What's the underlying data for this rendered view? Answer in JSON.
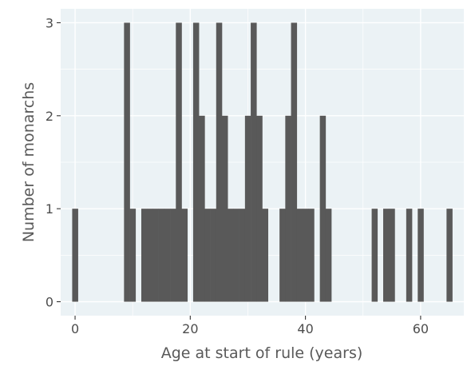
{
  "chart_data": {
    "type": "bar",
    "xlabel": "Age at start of rule (years)",
    "ylabel": "Number of monarchs",
    "xlim": [
      -2.5,
      67.5
    ],
    "ylim": [
      -0.15,
      3.15
    ],
    "x_ticks": [
      0,
      20,
      40,
      60
    ],
    "y_ticks": [
      0,
      1,
      2,
      3
    ],
    "x_tick_labels": [
      "0",
      "20",
      "40",
      "60"
    ],
    "y_tick_labels": [
      "0",
      "1",
      "2",
      "3"
    ],
    "bin_width": 1,
    "grid": true,
    "colors": {
      "bar": "#595959",
      "panel": "#ebf2f5",
      "grid": "#ffffff"
    },
    "bins": [
      {
        "x": 0,
        "count": 1
      },
      {
        "x": 9,
        "count": 3
      },
      {
        "x": 10,
        "count": 1
      },
      {
        "x": 12,
        "count": 1
      },
      {
        "x": 13,
        "count": 1
      },
      {
        "x": 14,
        "count": 1
      },
      {
        "x": 15,
        "count": 1
      },
      {
        "x": 16,
        "count": 1
      },
      {
        "x": 17,
        "count": 1
      },
      {
        "x": 18,
        "count": 3
      },
      {
        "x": 19,
        "count": 1
      },
      {
        "x": 21,
        "count": 3
      },
      {
        "x": 22,
        "count": 2
      },
      {
        "x": 23,
        "count": 1
      },
      {
        "x": 24,
        "count": 1
      },
      {
        "x": 25,
        "count": 3
      },
      {
        "x": 26,
        "count": 2
      },
      {
        "x": 27,
        "count": 1
      },
      {
        "x": 28,
        "count": 1
      },
      {
        "x": 29,
        "count": 1
      },
      {
        "x": 30,
        "count": 2
      },
      {
        "x": 31,
        "count": 3
      },
      {
        "x": 32,
        "count": 2
      },
      {
        "x": 33,
        "count": 1
      },
      {
        "x": 36,
        "count": 1
      },
      {
        "x": 37,
        "count": 2
      },
      {
        "x": 38,
        "count": 3
      },
      {
        "x": 39,
        "count": 1
      },
      {
        "x": 40,
        "count": 1
      },
      {
        "x": 41,
        "count": 1
      },
      {
        "x": 43,
        "count": 2
      },
      {
        "x": 44,
        "count": 1
      },
      {
        "x": 52,
        "count": 1
      },
      {
        "x": 54,
        "count": 1
      },
      {
        "x": 55,
        "count": 1
      },
      {
        "x": 58,
        "count": 1
      },
      {
        "x": 60,
        "count": 1
      },
      {
        "x": 65,
        "count": 1
      }
    ]
  }
}
